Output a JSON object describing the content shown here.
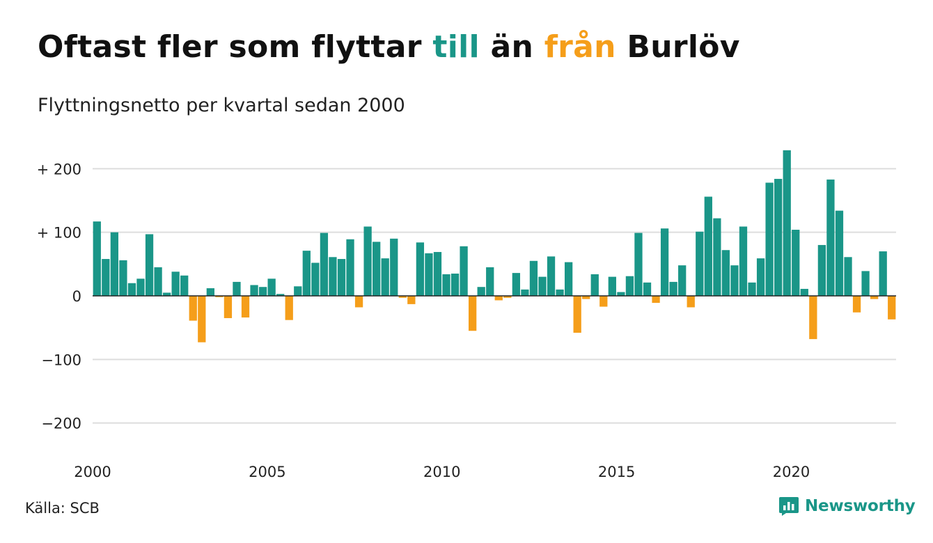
{
  "title": {
    "part1": "Oftast fler som flyttar ",
    "till": "till",
    "part2": " än ",
    "fran": "från",
    "part3": " Burlöv"
  },
  "subtitle": "Flyttningsnetto per kvartal sedan 2000",
  "source": "Källa: SCB",
  "brand": "Newsworthy",
  "colors": {
    "positive": "#1a9688",
    "negative": "#f59e1a",
    "grid": "#dddddd",
    "axis": "#222222"
  },
  "chart_data": {
    "type": "bar",
    "x_start_year": 2000,
    "periods_per_year": 4,
    "ylim": [
      -240,
      240
    ],
    "yticks": [
      {
        "value": 200,
        "label": "+ 200"
      },
      {
        "value": 100,
        "label": "+ 100"
      },
      {
        "value": 0,
        "label": "0"
      },
      {
        "value": -100,
        "label": "−100"
      },
      {
        "value": -200,
        "label": "−200"
      }
    ],
    "xticks": [
      {
        "value": 2000,
        "label": "2000"
      },
      {
        "value": 2005,
        "label": "2005"
      },
      {
        "value": 2010,
        "label": "2010"
      },
      {
        "value": 2015,
        "label": "2015"
      },
      {
        "value": 2020,
        "label": "2020"
      }
    ],
    "values": [
      117,
      58,
      100,
      56,
      20,
      27,
      97,
      45,
      5,
      38,
      32,
      -39,
      -73,
      12,
      -2,
      -35,
      22,
      -34,
      17,
      14,
      27,
      3,
      -38,
      15,
      71,
      52,
      99,
      61,
      58,
      89,
      -18,
      109,
      85,
      59,
      90,
      -3,
      -13,
      84,
      67,
      69,
      34,
      35,
      78,
      -55,
      14,
      45,
      -7,
      -3,
      36,
      10,
      55,
      30,
      62,
      10,
      53,
      -58,
      -5,
      34,
      -17,
      30,
      6,
      31,
      99,
      21,
      -11,
      106,
      22,
      48,
      -18,
      101,
      156,
      122,
      72,
      48,
      109,
      21,
      59,
      178,
      184,
      229,
      104,
      11,
      -68,
      80,
      183,
      134,
      61,
      -26,
      39,
      -5,
      70,
      -37
    ]
  }
}
